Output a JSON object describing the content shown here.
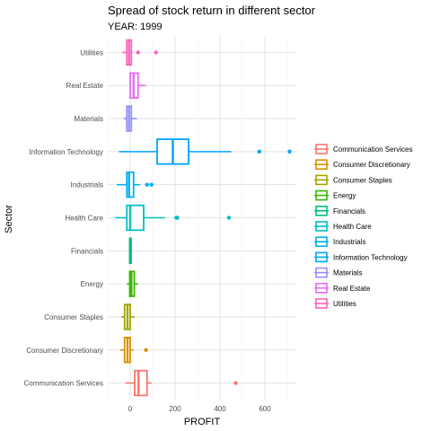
{
  "chart_data": {
    "type": "boxplot",
    "title": "Spread of stock return in different sector",
    "subtitle": "YEAR: 1999",
    "xlabel": "PROFIT",
    "ylabel": "Sector",
    "xlim": [
      -100,
      740
    ],
    "xticks": [
      0,
      200,
      400,
      600
    ],
    "grid": true,
    "legend_position": "right",
    "series": [
      {
        "name": "Communication Services",
        "color": "#F8766D",
        "q1": 20,
        "median": 37,
        "q3": 75,
        "whisker_low": -20,
        "whisker_high": 95,
        "outliers": [
          470
        ]
      },
      {
        "name": "Consumer Discretionary",
        "color": "#D89000",
        "q1": -25,
        "median": -12,
        "q3": 0,
        "whisker_low": -45,
        "whisker_high": 15,
        "outliers": [
          70
        ]
      },
      {
        "name": "Consumer Staples",
        "color": "#A3A500",
        "q1": -25,
        "median": -12,
        "q3": 0,
        "whisker_low": -40,
        "whisker_high": 20,
        "outliers": []
      },
      {
        "name": "Energy",
        "color": "#39B600",
        "q1": -2,
        "median": 5,
        "q3": 18,
        "whisker_low": -15,
        "whisker_high": 35,
        "outliers": []
      },
      {
        "name": "Financials",
        "color": "#00BF7D",
        "q1": -2,
        "median": 0,
        "q3": 2,
        "whisker_low": -4,
        "whisker_high": 4,
        "outliers": []
      },
      {
        "name": "Health Care",
        "color": "#00BFC4",
        "q1": -15,
        "median": 0,
        "q3": 60,
        "whisker_low": -65,
        "whisker_high": 155,
        "outliers": [
          205,
          210,
          440
        ]
      },
      {
        "name": "Industrials",
        "color": "#00B0F6",
        "q1": -15,
        "median": -5,
        "q3": 15,
        "whisker_low": -60,
        "whisker_high": 45,
        "outliers": [
          75,
          95
        ]
      },
      {
        "name": "Information Technology",
        "color": "#00A5FF",
        "q1": 120,
        "median": 190,
        "q3": 260,
        "whisker_low": -50,
        "whisker_high": 450,
        "outliers": [
          575,
          710
        ]
      },
      {
        "name": "Materials",
        "color": "#9590FF",
        "q1": -15,
        "median": -5,
        "q3": 5,
        "whisker_low": -30,
        "whisker_high": 30,
        "outliers": []
      },
      {
        "name": "Real Estate",
        "color": "#E76BF3",
        "q1": 0,
        "median": 15,
        "q3": 35,
        "whisker_low": 0,
        "whisker_high": 70,
        "outliers": []
      },
      {
        "name": "Utilities",
        "color": "#FF62BC",
        "q1": -15,
        "median": -5,
        "q3": 5,
        "whisker_low": -35,
        "whisker_high": 12,
        "outliers": [
          35,
          115
        ]
      }
    ]
  }
}
